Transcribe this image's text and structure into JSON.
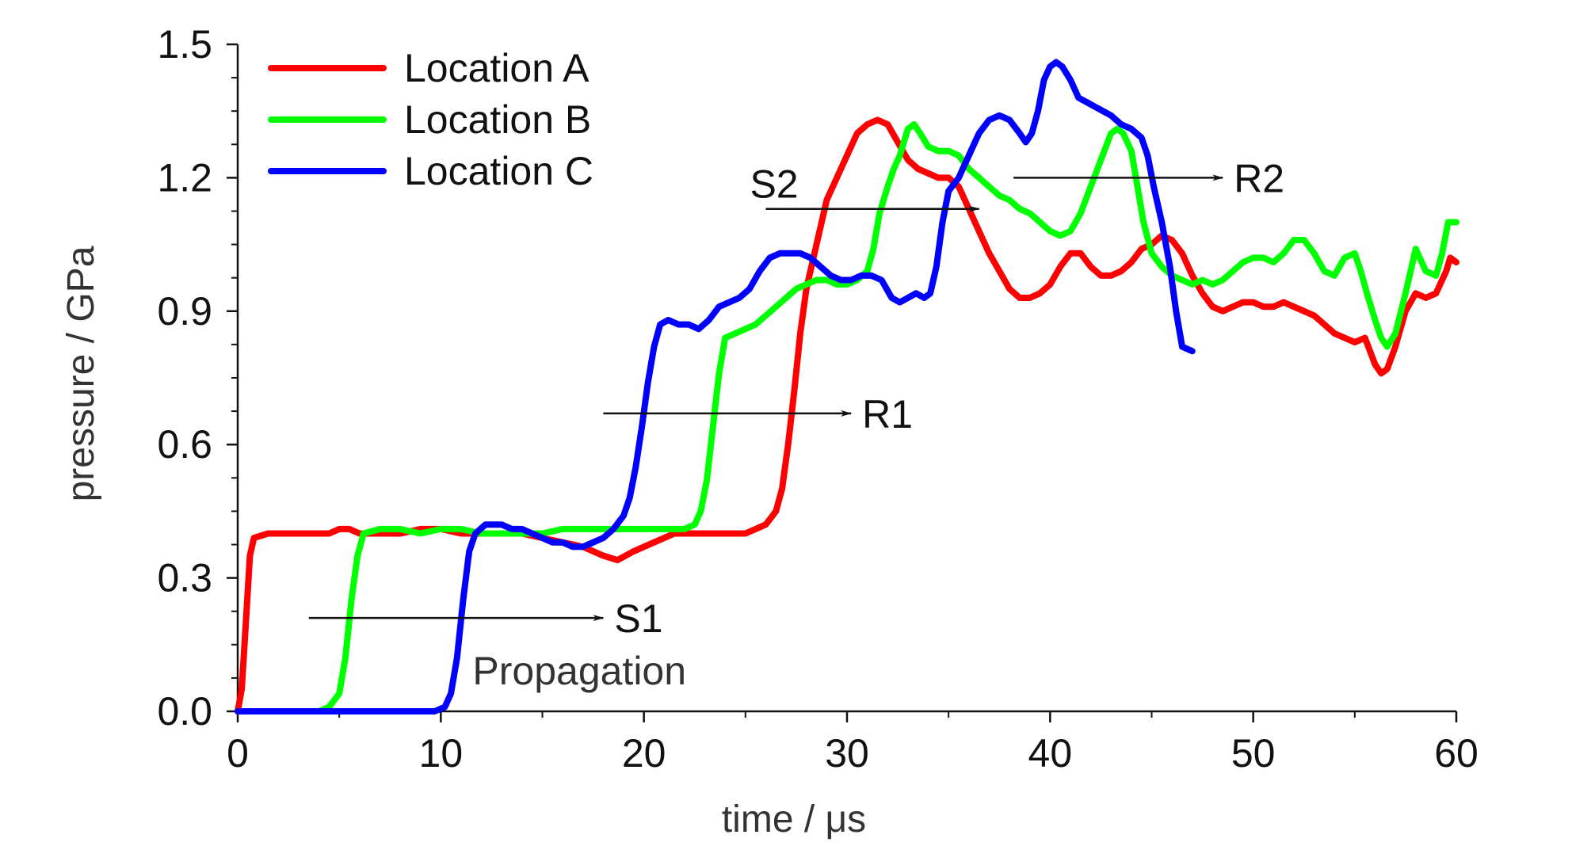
{
  "chart_data": {
    "type": "line",
    "title": "",
    "xlabel": "time / μs",
    "ylabel": "pressure / GPa",
    "xlim": [
      0,
      60
    ],
    "ylim": [
      0,
      1.5
    ],
    "x_ticks": [
      0,
      10,
      20,
      30,
      40,
      50,
      60
    ],
    "x_tick_labels": [
      "0",
      "10",
      "20",
      "30",
      "40",
      "50",
      "60"
    ],
    "y_ticks": [
      0.0,
      0.3,
      0.6,
      0.9,
      1.2,
      1.5
    ],
    "y_tick_labels": [
      "0.0",
      "0.3",
      "0.6",
      "0.9",
      "1.2",
      "1.5"
    ],
    "grid": false,
    "legend_position": "top-left",
    "series": [
      {
        "name": "Location A",
        "color": "#ff0000",
        "points": [
          [
            0,
            0
          ],
          [
            0.2,
            0.05
          ],
          [
            0.4,
            0.2
          ],
          [
            0.6,
            0.35
          ],
          [
            0.8,
            0.39
          ],
          [
            1.5,
            0.4
          ],
          [
            3,
            0.4
          ],
          [
            4.5,
            0.4
          ],
          [
            5,
            0.41
          ],
          [
            5.5,
            0.41
          ],
          [
            6,
            0.4
          ],
          [
            7,
            0.4
          ],
          [
            8,
            0.4
          ],
          [
            9,
            0.41
          ],
          [
            10,
            0.41
          ],
          [
            11,
            0.4
          ],
          [
            12,
            0.4
          ],
          [
            13,
            0.4
          ],
          [
            14,
            0.4
          ],
          [
            15,
            0.39
          ],
          [
            16,
            0.38
          ],
          [
            17,
            0.37
          ],
          [
            17.5,
            0.36
          ],
          [
            18,
            0.35
          ],
          [
            18.7,
            0.34
          ],
          [
            19.5,
            0.36
          ],
          [
            20.5,
            0.38
          ],
          [
            21.5,
            0.4
          ],
          [
            22.5,
            0.4
          ],
          [
            23.5,
            0.4
          ],
          [
            24.5,
            0.4
          ],
          [
            25,
            0.4
          ],
          [
            25.5,
            0.41
          ],
          [
            26,
            0.42
          ],
          [
            26.5,
            0.45
          ],
          [
            26.8,
            0.5
          ],
          [
            27.1,
            0.6
          ],
          [
            27.4,
            0.72
          ],
          [
            27.7,
            0.85
          ],
          [
            28,
            0.95
          ],
          [
            28.5,
            1.05
          ],
          [
            29,
            1.15
          ],
          [
            29.5,
            1.2
          ],
          [
            30,
            1.25
          ],
          [
            30.5,
            1.3
          ],
          [
            31,
            1.32
          ],
          [
            31.5,
            1.33
          ],
          [
            32,
            1.32
          ],
          [
            32.5,
            1.28
          ],
          [
            33,
            1.24
          ],
          [
            33.5,
            1.22
          ],
          [
            34,
            1.21
          ],
          [
            34.5,
            1.2
          ],
          [
            35,
            1.2
          ],
          [
            35.5,
            1.18
          ],
          [
            36,
            1.13
          ],
          [
            36.5,
            1.08
          ],
          [
            37,
            1.03
          ],
          [
            37.5,
            0.99
          ],
          [
            38,
            0.95
          ],
          [
            38.5,
            0.93
          ],
          [
            39,
            0.93
          ],
          [
            39.5,
            0.94
          ],
          [
            40,
            0.96
          ],
          [
            40.5,
            1.0
          ],
          [
            41,
            1.03
          ],
          [
            41.5,
            1.03
          ],
          [
            42,
            1.0
          ],
          [
            42.5,
            0.98
          ],
          [
            43,
            0.98
          ],
          [
            43.5,
            0.99
          ],
          [
            44,
            1.01
          ],
          [
            44.5,
            1.04
          ],
          [
            45,
            1.05
          ],
          [
            45.5,
            1.07
          ],
          [
            46,
            1.06
          ],
          [
            46.5,
            1.03
          ],
          [
            47,
            0.98
          ],
          [
            47.5,
            0.94
          ],
          [
            48,
            0.91
          ],
          [
            48.5,
            0.9
          ],
          [
            49,
            0.91
          ],
          [
            49.5,
            0.92
          ],
          [
            50,
            0.92
          ],
          [
            50.5,
            0.91
          ],
          [
            51,
            0.91
          ],
          [
            51.5,
            0.92
          ],
          [
            52,
            0.91
          ],
          [
            52.5,
            0.9
          ],
          [
            53,
            0.89
          ],
          [
            53.5,
            0.87
          ],
          [
            54,
            0.85
          ],
          [
            54.5,
            0.84
          ],
          [
            55,
            0.83
          ],
          [
            55.5,
            0.84
          ],
          [
            56,
            0.78
          ],
          [
            56.3,
            0.76
          ],
          [
            56.6,
            0.77
          ],
          [
            57,
            0.82
          ],
          [
            57.5,
            0.9
          ],
          [
            58,
            0.94
          ],
          [
            58.5,
            0.93
          ],
          [
            59,
            0.94
          ],
          [
            59.5,
            0.99
          ],
          [
            59.7,
            1.02
          ],
          [
            60,
            1.01
          ]
        ]
      },
      {
        "name": "Location B",
        "color": "#00ff00",
        "points": [
          [
            4,
            0
          ],
          [
            4.5,
            0.01
          ],
          [
            5,
            0.04
          ],
          [
            5.3,
            0.12
          ],
          [
            5.6,
            0.25
          ],
          [
            5.9,
            0.35
          ],
          [
            6.2,
            0.4
          ],
          [
            7,
            0.41
          ],
          [
            8,
            0.41
          ],
          [
            9,
            0.4
          ],
          [
            10,
            0.41
          ],
          [
            11,
            0.41
          ],
          [
            12,
            0.4
          ],
          [
            13,
            0.4
          ],
          [
            14,
            0.4
          ],
          [
            15,
            0.4
          ],
          [
            16,
            0.41
          ],
          [
            17,
            0.41
          ],
          [
            18,
            0.41
          ],
          [
            19,
            0.41
          ],
          [
            20,
            0.41
          ],
          [
            21,
            0.41
          ],
          [
            22,
            0.41
          ],
          [
            22.5,
            0.42
          ],
          [
            22.8,
            0.45
          ],
          [
            23.1,
            0.52
          ],
          [
            23.4,
            0.64
          ],
          [
            23.7,
            0.76
          ],
          [
            24,
            0.84
          ],
          [
            24.5,
            0.85
          ],
          [
            25,
            0.86
          ],
          [
            25.5,
            0.87
          ],
          [
            26,
            0.89
          ],
          [
            26.5,
            0.91
          ],
          [
            27,
            0.93
          ],
          [
            27.5,
            0.95
          ],
          [
            28,
            0.96
          ],
          [
            28.5,
            0.97
          ],
          [
            29,
            0.97
          ],
          [
            29.5,
            0.96
          ],
          [
            30,
            0.96
          ],
          [
            30.5,
            0.97
          ],
          [
            31,
            0.99
          ],
          [
            31.3,
            1.04
          ],
          [
            31.6,
            1.12
          ],
          [
            32,
            1.18
          ],
          [
            32.3,
            1.22
          ],
          [
            32.6,
            1.25
          ],
          [
            33,
            1.31
          ],
          [
            33.3,
            1.32
          ],
          [
            33.6,
            1.3
          ],
          [
            34,
            1.27
          ],
          [
            34.5,
            1.26
          ],
          [
            35,
            1.26
          ],
          [
            35.5,
            1.25
          ],
          [
            36,
            1.22
          ],
          [
            36.5,
            1.2
          ],
          [
            37,
            1.18
          ],
          [
            37.5,
            1.16
          ],
          [
            38,
            1.15
          ],
          [
            38.5,
            1.13
          ],
          [
            39,
            1.12
          ],
          [
            39.5,
            1.1
          ],
          [
            40,
            1.08
          ],
          [
            40.5,
            1.07
          ],
          [
            41,
            1.08
          ],
          [
            41.5,
            1.12
          ],
          [
            42,
            1.18
          ],
          [
            42.5,
            1.24
          ],
          [
            43,
            1.3
          ],
          [
            43.3,
            1.31
          ],
          [
            43.6,
            1.3
          ],
          [
            44,
            1.26
          ],
          [
            44.3,
            1.18
          ],
          [
            44.6,
            1.1
          ],
          [
            45,
            1.03
          ],
          [
            45.5,
            1.0
          ],
          [
            46,
            0.98
          ],
          [
            46.5,
            0.97
          ],
          [
            47,
            0.96
          ],
          [
            47.5,
            0.97
          ],
          [
            48,
            0.96
          ],
          [
            48.5,
            0.97
          ],
          [
            49,
            0.99
          ],
          [
            49.5,
            1.01
          ],
          [
            50,
            1.02
          ],
          [
            50.5,
            1.02
          ],
          [
            51,
            1.01
          ],
          [
            51.5,
            1.03
          ],
          [
            52,
            1.06
          ],
          [
            52.5,
            1.06
          ],
          [
            53,
            1.03
          ],
          [
            53.5,
            0.99
          ],
          [
            54,
            0.98
          ],
          [
            54.5,
            1.02
          ],
          [
            55,
            1.03
          ],
          [
            55.3,
            0.99
          ],
          [
            55.6,
            0.94
          ],
          [
            56,
            0.88
          ],
          [
            56.3,
            0.84
          ],
          [
            56.6,
            0.82
          ],
          [
            57,
            0.85
          ],
          [
            57.5,
            0.94
          ],
          [
            58,
            1.04
          ],
          [
            58.5,
            0.99
          ],
          [
            59,
            0.98
          ],
          [
            59.3,
            1.03
          ],
          [
            59.6,
            1.1
          ],
          [
            60,
            1.1
          ]
        ]
      },
      {
        "name": "Location C",
        "color": "#0000ff",
        "points": [
          [
            0,
            0
          ],
          [
            9,
            0
          ],
          [
            9.7,
            0
          ],
          [
            10.2,
            0.01
          ],
          [
            10.5,
            0.04
          ],
          [
            10.8,
            0.12
          ],
          [
            11.1,
            0.25
          ],
          [
            11.4,
            0.36
          ],
          [
            11.7,
            0.4
          ],
          [
            12.2,
            0.42
          ],
          [
            13,
            0.42
          ],
          [
            13.5,
            0.41
          ],
          [
            14,
            0.41
          ],
          [
            14.5,
            0.4
          ],
          [
            15,
            0.39
          ],
          [
            15.5,
            0.38
          ],
          [
            16,
            0.38
          ],
          [
            16.5,
            0.37
          ],
          [
            17,
            0.37
          ],
          [
            17.5,
            0.38
          ],
          [
            18,
            0.39
          ],
          [
            18.5,
            0.41
          ],
          [
            19,
            0.44
          ],
          [
            19.3,
            0.48
          ],
          [
            19.6,
            0.55
          ],
          [
            19.9,
            0.64
          ],
          [
            20.2,
            0.74
          ],
          [
            20.5,
            0.82
          ],
          [
            20.8,
            0.87
          ],
          [
            21.2,
            0.88
          ],
          [
            21.7,
            0.87
          ],
          [
            22.2,
            0.87
          ],
          [
            22.7,
            0.86
          ],
          [
            23.2,
            0.88
          ],
          [
            23.7,
            0.91
          ],
          [
            24.2,
            0.92
          ],
          [
            24.7,
            0.93
          ],
          [
            25.2,
            0.95
          ],
          [
            25.7,
            0.99
          ],
          [
            26.2,
            1.02
          ],
          [
            26.7,
            1.03
          ],
          [
            27.2,
            1.03
          ],
          [
            27.7,
            1.03
          ],
          [
            28.2,
            1.02
          ],
          [
            28.7,
            1.0
          ],
          [
            29.2,
            0.98
          ],
          [
            29.7,
            0.97
          ],
          [
            30.2,
            0.97
          ],
          [
            30.7,
            0.98
          ],
          [
            31.2,
            0.98
          ],
          [
            31.7,
            0.97
          ],
          [
            32.2,
            0.93
          ],
          [
            32.6,
            0.92
          ],
          [
            33,
            0.93
          ],
          [
            33.4,
            0.94
          ],
          [
            33.8,
            0.93
          ],
          [
            34.1,
            0.94
          ],
          [
            34.4,
            1.0
          ],
          [
            34.7,
            1.1
          ],
          [
            35,
            1.17
          ],
          [
            35.5,
            1.2
          ],
          [
            36,
            1.25
          ],
          [
            36.5,
            1.3
          ],
          [
            37,
            1.33
          ],
          [
            37.5,
            1.34
          ],
          [
            38,
            1.33
          ],
          [
            38.5,
            1.3
          ],
          [
            38.8,
            1.28
          ],
          [
            39.1,
            1.3
          ],
          [
            39.4,
            1.35
          ],
          [
            39.7,
            1.42
          ],
          [
            40,
            1.45
          ],
          [
            40.3,
            1.46
          ],
          [
            40.6,
            1.45
          ],
          [
            41,
            1.42
          ],
          [
            41.4,
            1.38
          ],
          [
            41.8,
            1.37
          ],
          [
            42.2,
            1.36
          ],
          [
            42.6,
            1.35
          ],
          [
            43,
            1.34
          ],
          [
            43.5,
            1.32
          ],
          [
            44,
            1.31
          ],
          [
            44.5,
            1.29
          ],
          [
            44.8,
            1.25
          ],
          [
            45.1,
            1.18
          ],
          [
            45.5,
            1.1
          ],
          [
            45.9,
            1.0
          ],
          [
            46.2,
            0.9
          ],
          [
            46.5,
            0.82
          ],
          [
            47,
            0.81
          ]
        ]
      }
    ],
    "annotations": [
      {
        "label": "S1",
        "sub_label": "Propagation",
        "arrow_from": [
          3.5,
          0.21
        ],
        "arrow_to": [
          18,
          0.21
        ]
      },
      {
        "label": "R1",
        "sub_label": "",
        "arrow_from": [
          18,
          0.67
        ],
        "arrow_to": [
          30.2,
          0.67
        ]
      },
      {
        "label": "S2",
        "sub_label": "",
        "arrow_from": [
          26,
          1.13
        ],
        "arrow_to": [
          36.5,
          1.13
        ]
      },
      {
        "label": "R2",
        "sub_label": "",
        "arrow_from": [
          38.2,
          1.2
        ],
        "arrow_to": [
          48.5,
          1.2
        ]
      }
    ]
  }
}
